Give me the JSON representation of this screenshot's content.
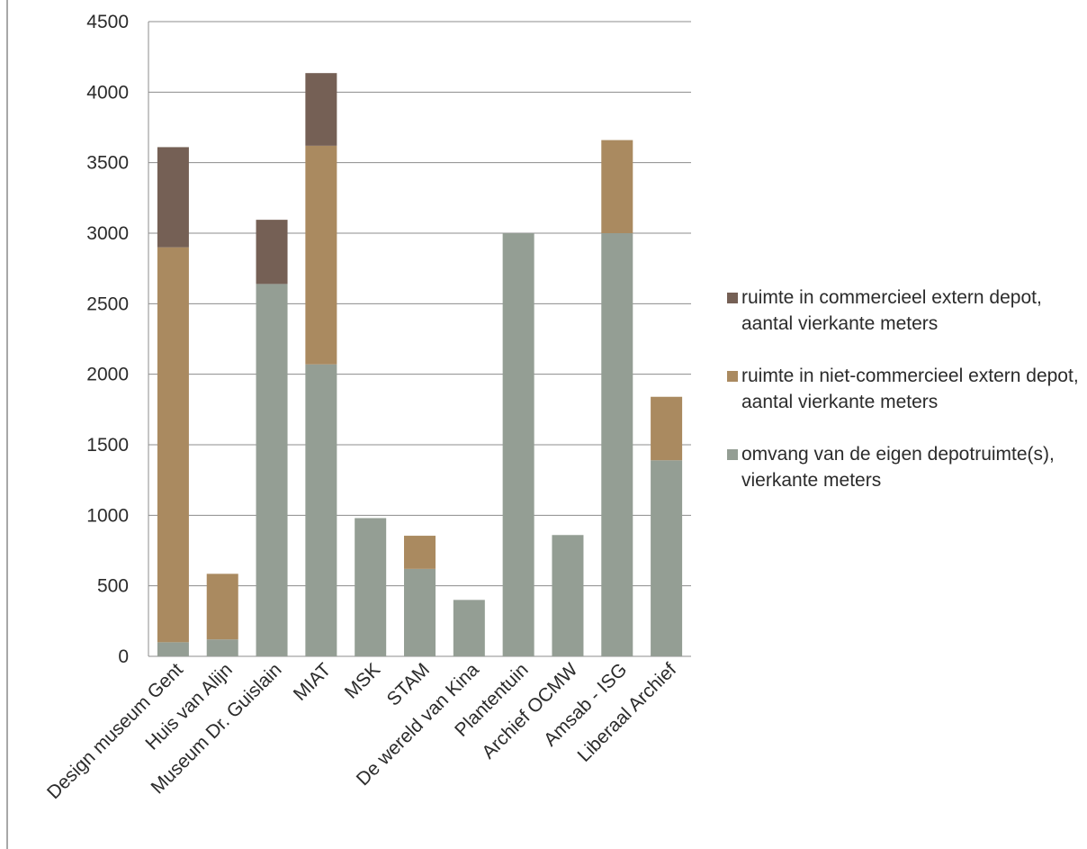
{
  "chart_data": {
    "type": "bar",
    "stacked": true,
    "categories": [
      "Design museum Gent",
      "Huis van Alijn",
      "Museum Dr. Guislain",
      "MIAT",
      "MSK",
      "STAM",
      "De wereld van Kina",
      "Plantentuin",
      "Archief OCMW",
      "Amsab - ISG",
      "Liberaal Archief"
    ],
    "series": [
      {
        "name": "omvang van de eigen depotruimte(s), vierkante meters",
        "color": "#949e94",
        "values": [
          100,
          120,
          2640,
          2070,
          980,
          620,
          400,
          3000,
          860,
          3000,
          1390
        ]
      },
      {
        "name": "ruimte in niet-commercieel extern depot, aantal vierkante meters",
        "color": "#aa8a60",
        "values": [
          2800,
          465,
          0,
          1550,
          0,
          235,
          0,
          0,
          0,
          660,
          450
        ]
      },
      {
        "name": "ruimte in commercieel extern depot, aantal vierkante meters",
        "color": "#756055",
        "values": [
          710,
          0,
          455,
          515,
          0,
          0,
          0,
          0,
          0,
          0,
          0
        ]
      }
    ],
    "legend_order": [
      2,
      1,
      0
    ],
    "yticks": [
      "0",
      "500",
      "1000",
      "1500",
      "2000",
      "2500",
      "3000",
      "3500",
      "4000",
      "4500"
    ],
    "ylim": [
      0,
      4500
    ],
    "grid": true,
    "legend_position": "right",
    "title": "",
    "xlabel": "",
    "ylabel": ""
  }
}
